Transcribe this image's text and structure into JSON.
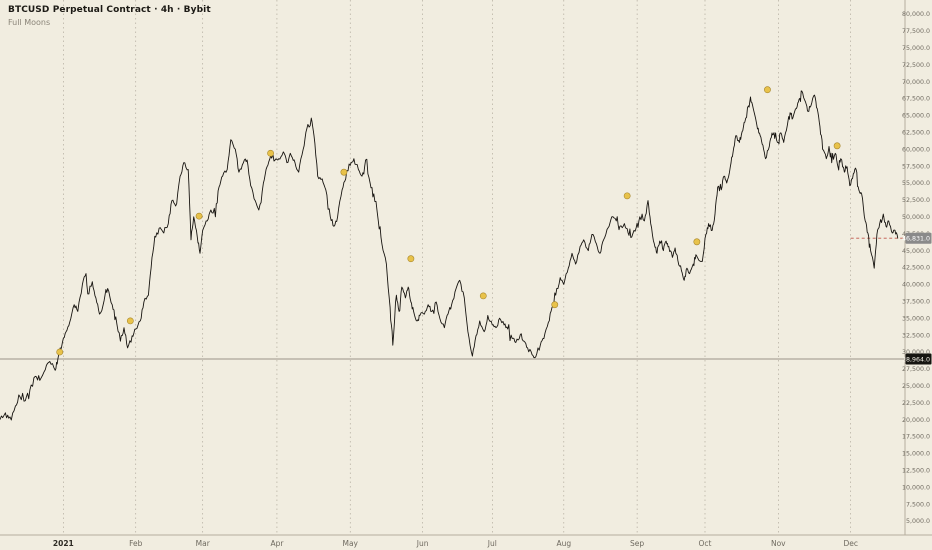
{
  "legend": {
    "title": "BTCUSD Perpetual Contract · 4h · Bybit",
    "study": "Full Moons"
  },
  "chart_data": {
    "type": "line",
    "symbol": "BTCUSD Perpetual Contract",
    "interval": "4h",
    "exchange": "Bybit",
    "overlay": "Full Moons",
    "unit": "USD",
    "ylim": [
      5000,
      80000
    ],
    "y_tick_step": 2500,
    "grid": "vertical-dashed-monthly",
    "x_tick_labels": [
      {
        "f": 0.07,
        "label": "2021",
        "em": true
      },
      {
        "f": 0.15,
        "label": "Feb"
      },
      {
        "f": 0.224,
        "label": "Mar"
      },
      {
        "f": 0.306,
        "label": "Apr"
      },
      {
        "f": 0.387,
        "label": "May"
      },
      {
        "f": 0.467,
        "label": "Jun"
      },
      {
        "f": 0.544,
        "label": "Jul"
      },
      {
        "f": 0.623,
        "label": "Aug"
      },
      {
        "f": 0.704,
        "label": "Sep"
      },
      {
        "f": 0.779,
        "label": "Oct"
      },
      {
        "f": 0.86,
        "label": "Nov"
      },
      {
        "f": 0.94,
        "label": "Dec"
      }
    ],
    "levels": [
      {
        "value": 28964.0,
        "label": "28,964.0",
        "style": "solid",
        "from": 0,
        "line_color": "#9a9388",
        "box_bg": "#161511",
        "box_fg": "#f5f2e8"
      },
      {
        "value": 46831.0,
        "label": "46,831.0",
        "style": "dashed",
        "from": 0.94,
        "line_color": "#c0564a",
        "box_bg": "#8a8a8a",
        "box_fg": "#ffffff"
      }
    ],
    "full_moons_k": [
      [
        0.066,
        30.0
      ],
      [
        0.144,
        34.6
      ],
      [
        0.22,
        50.1
      ],
      [
        0.299,
        59.4
      ],
      [
        0.38,
        56.6
      ],
      [
        0.454,
        43.8
      ],
      [
        0.534,
        38.3
      ],
      [
        0.613,
        37.0
      ],
      [
        0.693,
        53.1
      ],
      [
        0.77,
        46.3
      ],
      [
        0.848,
        68.8
      ],
      [
        0.925,
        60.5
      ]
    ],
    "price_points_k": [
      [
        0.0,
        20.0
      ],
      [
        0.006,
        21.0
      ],
      [
        0.011,
        20.4
      ],
      [
        0.017,
        22.0
      ],
      [
        0.022,
        23.4
      ],
      [
        0.028,
        22.8
      ],
      [
        0.033,
        24.4
      ],
      [
        0.039,
        26.4
      ],
      [
        0.044,
        25.8
      ],
      [
        0.05,
        27.4
      ],
      [
        0.055,
        28.6
      ],
      [
        0.061,
        27.3
      ],
      [
        0.064,
        29.0
      ],
      [
        0.069,
        31.4
      ],
      [
        0.073,
        33.0
      ],
      [
        0.077,
        34.4
      ],
      [
        0.082,
        37.0
      ],
      [
        0.086,
        36.0
      ],
      [
        0.091,
        40.0
      ],
      [
        0.095,
        41.6
      ],
      [
        0.097,
        38.6
      ],
      [
        0.102,
        40.4
      ],
      [
        0.106,
        38.0
      ],
      [
        0.11,
        35.6
      ],
      [
        0.115,
        37.6
      ],
      [
        0.119,
        39.4
      ],
      [
        0.124,
        37.0
      ],
      [
        0.128,
        35.2
      ],
      [
        0.133,
        31.6
      ],
      [
        0.137,
        33.6
      ],
      [
        0.141,
        30.6
      ],
      [
        0.146,
        32.4
      ],
      [
        0.15,
        33.4
      ],
      [
        0.155,
        34.6
      ],
      [
        0.159,
        37.4
      ],
      [
        0.164,
        38.4
      ],
      [
        0.168,
        44.0
      ],
      [
        0.172,
        47.0
      ],
      [
        0.177,
        48.4
      ],
      [
        0.181,
        47.6
      ],
      [
        0.186,
        49.0
      ],
      [
        0.19,
        52.4
      ],
      [
        0.194,
        51.6
      ],
      [
        0.199,
        56.0
      ],
      [
        0.203,
        58.0
      ],
      [
        0.208,
        57.0
      ],
      [
        0.211,
        46.6
      ],
      [
        0.214,
        50.0
      ],
      [
        0.218,
        47.0
      ],
      [
        0.221,
        44.6
      ],
      [
        0.224,
        48.0
      ],
      [
        0.229,
        49.4
      ],
      [
        0.233,
        51.0
      ],
      [
        0.238,
        50.0
      ],
      [
        0.242,
        54.4
      ],
      [
        0.246,
        56.0
      ],
      [
        0.251,
        57.0
      ],
      [
        0.255,
        61.4
      ],
      [
        0.26,
        60.0
      ],
      [
        0.264,
        56.6
      ],
      [
        0.269,
        58.0
      ],
      [
        0.273,
        58.4
      ],
      [
        0.277,
        54.6
      ],
      [
        0.282,
        52.4
      ],
      [
        0.286,
        51.0
      ],
      [
        0.291,
        55.0
      ],
      [
        0.295,
        57.4
      ],
      [
        0.299,
        59.0
      ],
      [
        0.304,
        58.4
      ],
      [
        0.308,
        58.6
      ],
      [
        0.313,
        59.6
      ],
      [
        0.317,
        58.0
      ],
      [
        0.322,
        59.0
      ],
      [
        0.326,
        58.0
      ],
      [
        0.33,
        56.6
      ],
      [
        0.335,
        60.0
      ],
      [
        0.339,
        63.0
      ],
      [
        0.344,
        64.6
      ],
      [
        0.347,
        62.0
      ],
      [
        0.351,
        56.0
      ],
      [
        0.356,
        55.6
      ],
      [
        0.36,
        54.0
      ],
      [
        0.365,
        50.0
      ],
      [
        0.369,
        48.6
      ],
      [
        0.373,
        50.0
      ],
      [
        0.378,
        54.0
      ],
      [
        0.382,
        55.6
      ],
      [
        0.387,
        57.6
      ],
      [
        0.391,
        58.6
      ],
      [
        0.396,
        57.0
      ],
      [
        0.4,
        56.0
      ],
      [
        0.404,
        58.4
      ],
      [
        0.409,
        55.0
      ],
      [
        0.413,
        53.4
      ],
      [
        0.418,
        49.4
      ],
      [
        0.422,
        46.0
      ],
      [
        0.427,
        43.0
      ],
      [
        0.431,
        36.6
      ],
      [
        0.434,
        31.0
      ],
      [
        0.438,
        38.4
      ],
      [
        0.441,
        36.0
      ],
      [
        0.444,
        39.6
      ],
      [
        0.448,
        38.0
      ],
      [
        0.451,
        39.6
      ],
      [
        0.454,
        37.4
      ],
      [
        0.457,
        36.0
      ],
      [
        0.461,
        34.6
      ],
      [
        0.464,
        35.4
      ],
      [
        0.469,
        35.6
      ],
      [
        0.473,
        37.0
      ],
      [
        0.477,
        36.0
      ],
      [
        0.482,
        37.4
      ],
      [
        0.486,
        35.0
      ],
      [
        0.491,
        33.6
      ],
      [
        0.495,
        35.6
      ],
      [
        0.499,
        37.0
      ],
      [
        0.504,
        39.4
      ],
      [
        0.508,
        40.6
      ],
      [
        0.513,
        38.0
      ],
      [
        0.517,
        33.0
      ],
      [
        0.522,
        29.4
      ],
      [
        0.526,
        32.4
      ],
      [
        0.53,
        34.6
      ],
      [
        0.535,
        33.0
      ],
      [
        0.539,
        35.4
      ],
      [
        0.544,
        34.0
      ],
      [
        0.548,
        33.6
      ],
      [
        0.552,
        35.0
      ],
      [
        0.557,
        34.0
      ],
      [
        0.561,
        33.4
      ],
      [
        0.566,
        32.0
      ],
      [
        0.57,
        31.4
      ],
      [
        0.575,
        32.6
      ],
      [
        0.579,
        31.6
      ],
      [
        0.583,
        30.6
      ],
      [
        0.588,
        29.6
      ],
      [
        0.592,
        29.3
      ],
      [
        0.597,
        31.0
      ],
      [
        0.601,
        32.0
      ],
      [
        0.606,
        34.4
      ],
      [
        0.61,
        36.6
      ],
      [
        0.614,
        38.4
      ],
      [
        0.619,
        41.0
      ],
      [
        0.623,
        40.0
      ],
      [
        0.628,
        42.4
      ],
      [
        0.632,
        44.6
      ],
      [
        0.636,
        43.0
      ],
      [
        0.641,
        45.6
      ],
      [
        0.645,
        46.6
      ],
      [
        0.65,
        45.0
      ],
      [
        0.654,
        47.4
      ],
      [
        0.659,
        46.0
      ],
      [
        0.663,
        44.6
      ],
      [
        0.667,
        46.6
      ],
      [
        0.672,
        48.4
      ],
      [
        0.676,
        50.0
      ],
      [
        0.681,
        49.4
      ],
      [
        0.685,
        48.6
      ],
      [
        0.69,
        49.0
      ],
      [
        0.694,
        47.6
      ],
      [
        0.698,
        47.0
      ],
      [
        0.703,
        48.4
      ],
      [
        0.707,
        50.0
      ],
      [
        0.712,
        49.4
      ],
      [
        0.716,
        52.4
      ],
      [
        0.719,
        49.0
      ],
      [
        0.723,
        46.0
      ],
      [
        0.726,
        44.6
      ],
      [
        0.729,
        46.4
      ],
      [
        0.733,
        45.0
      ],
      [
        0.736,
        46.4
      ],
      [
        0.739,
        45.6
      ],
      [
        0.743,
        44.0
      ],
      [
        0.746,
        45.4
      ],
      [
        0.749,
        43.6
      ],
      [
        0.753,
        42.0
      ],
      [
        0.756,
        40.6
      ],
      [
        0.759,
        42.4
      ],
      [
        0.762,
        41.6
      ],
      [
        0.766,
        43.0
      ],
      [
        0.769,
        44.4
      ],
      [
        0.772,
        43.6
      ],
      [
        0.776,
        43.4
      ],
      [
        0.78,
        47.4
      ],
      [
        0.783,
        49.0
      ],
      [
        0.787,
        48.0
      ],
      [
        0.79,
        50.4
      ],
      [
        0.793,
        54.4
      ],
      [
        0.797,
        54.0
      ],
      [
        0.8,
        56.0
      ],
      [
        0.803,
        55.0
      ],
      [
        0.807,
        57.4
      ],
      [
        0.81,
        59.6
      ],
      [
        0.813,
        62.0
      ],
      [
        0.817,
        61.0
      ],
      [
        0.82,
        62.6
      ],
      [
        0.823,
        64.0
      ],
      [
        0.827,
        66.4
      ],
      [
        0.83,
        67.0
      ],
      [
        0.833,
        65.6
      ],
      [
        0.837,
        63.0
      ],
      [
        0.84,
        62.0
      ],
      [
        0.843,
        60.6
      ],
      [
        0.846,
        58.6
      ],
      [
        0.85,
        60.4
      ],
      [
        0.853,
        62.4
      ],
      [
        0.856,
        61.6
      ],
      [
        0.86,
        61.0
      ],
      [
        0.863,
        62.4
      ],
      [
        0.866,
        61.0
      ],
      [
        0.87,
        63.6
      ],
      [
        0.873,
        65.4
      ],
      [
        0.876,
        64.6
      ],
      [
        0.88,
        66.0
      ],
      [
        0.883,
        67.4
      ],
      [
        0.886,
        68.6
      ],
      [
        0.89,
        67.0
      ],
      [
        0.893,
        65.6
      ],
      [
        0.896,
        66.4
      ],
      [
        0.9,
        68.0
      ],
      [
        0.903,
        66.0
      ],
      [
        0.906,
        63.4
      ],
      [
        0.909,
        60.0
      ],
      [
        0.913,
        58.6
      ],
      [
        0.916,
        60.4
      ],
      [
        0.919,
        58.0
      ],
      [
        0.923,
        59.4
      ],
      [
        0.926,
        57.4
      ],
      [
        0.929,
        58.6
      ],
      [
        0.933,
        56.6
      ],
      [
        0.936,
        57.4
      ],
      [
        0.939,
        54.6
      ],
      [
        0.943,
        56.4
      ],
      [
        0.946,
        57.0
      ],
      [
        0.949,
        54.0
      ],
      [
        0.952,
        53.4
      ],
      [
        0.956,
        49.4
      ],
      [
        0.959,
        47.6
      ],
      [
        0.962,
        45.0
      ],
      [
        0.966,
        42.4
      ],
      [
        0.969,
        47.4
      ],
      [
        0.972,
        49.0
      ],
      [
        0.976,
        50.4
      ],
      [
        0.979,
        48.6
      ],
      [
        0.982,
        49.4
      ],
      [
        0.986,
        47.6
      ],
      [
        0.989,
        48.0
      ],
      [
        0.992,
        46.8
      ]
    ],
    "colors": {
      "background": "#f1ede0",
      "series": "#171410",
      "moon": "#e8c24a",
      "moon_edge": "#a8872c",
      "grid": "#a8a193",
      "axis_text": "#6f6a60",
      "axis_text_em": "#2e2b24",
      "axis_line": "#b5ad9e"
    }
  }
}
